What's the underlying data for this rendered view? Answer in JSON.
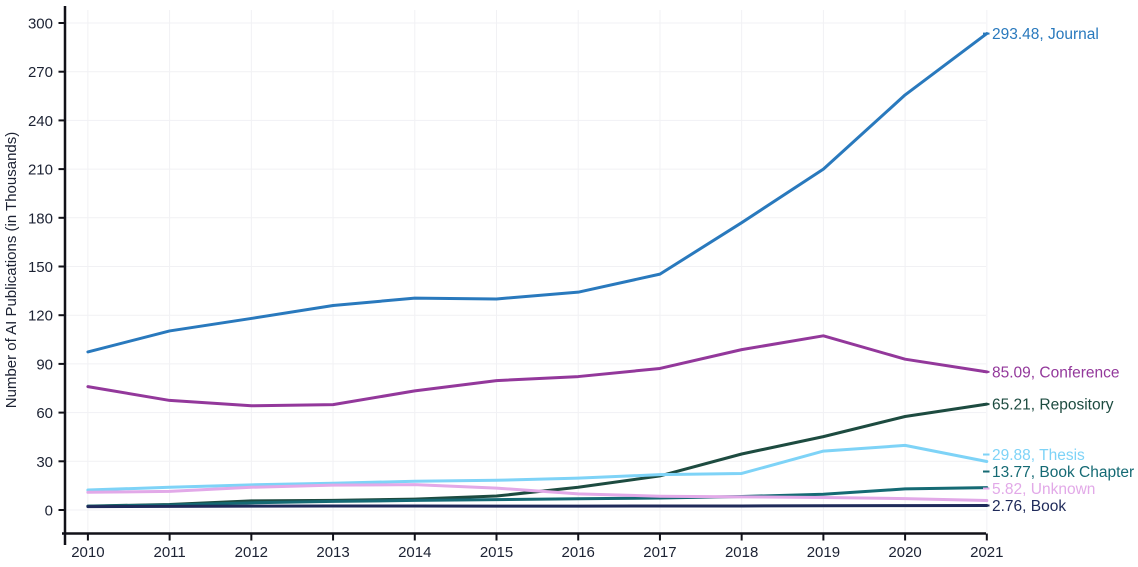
{
  "chart_data": {
    "type": "line",
    "title": "",
    "xlabel": "",
    "ylabel": "Number of AI Publications (in Thousands)",
    "x": [
      2010,
      2011,
      2012,
      2013,
      2014,
      2015,
      2016,
      2017,
      2018,
      2019,
      2020,
      2021
    ],
    "ylim": [
      0,
      300
    ],
    "ytick_step": 30,
    "grid": true,
    "legend_position": "right-end-labels",
    "series": [
      {
        "name": "Journal",
        "color": "#2979bd",
        "end_label": "293.48, Journal",
        "values": [
          97.4,
          110.3,
          118.0,
          126.0,
          130.5,
          130.0,
          134.2,
          145.3,
          177.0,
          210.0,
          255.7,
          293.48
        ]
      },
      {
        "name": "Conference",
        "color": "#93389b",
        "end_label": "85.09, Conference",
        "values": [
          76.0,
          67.5,
          64.2,
          64.9,
          73.4,
          79.7,
          82.2,
          87.2,
          98.8,
          107.3,
          92.9,
          85.09
        ]
      },
      {
        "name": "Repository",
        "color": "#1d4b40",
        "end_label": "65.21, Repository",
        "values": [
          2.4,
          3.4,
          5.6,
          5.9,
          6.7,
          8.6,
          14.0,
          21.0,
          34.5,
          45.2,
          57.6,
          65.21
        ]
      },
      {
        "name": "Thesis",
        "color": "#7ed3f7",
        "end_label": "29.88, Thesis",
        "values": [
          12.3,
          14.0,
          15.5,
          16.5,
          17.7,
          18.3,
          19.6,
          21.8,
          22.5,
          36.3,
          39.8,
          29.88
        ]
      },
      {
        "name": "Book Chapter",
        "color": "#156a74",
        "end_label": "13.77, Book Chapter",
        "values": [
          2.3,
          3.1,
          4.4,
          5.3,
          5.9,
          6.4,
          6.9,
          7.4,
          8.3,
          9.7,
          13.0,
          13.77
        ]
      },
      {
        "name": "Unknown",
        "color": "#e2a9e8",
        "end_label": "5.82, Unknown",
        "values": [
          10.9,
          11.5,
          14.0,
          15.3,
          15.6,
          13.5,
          9.9,
          8.5,
          8.1,
          7.7,
          7.0,
          5.82
        ]
      },
      {
        "name": "Book",
        "color": "#1f2a5a",
        "end_label": "2.76, Book",
        "values": [
          2.1,
          2.2,
          2.4,
          2.5,
          2.5,
          2.4,
          2.4,
          2.5,
          2.5,
          2.6,
          2.7,
          2.76
        ]
      }
    ]
  },
  "axes": {
    "y_tick_values": [
      0,
      30,
      60,
      90,
      120,
      150,
      180,
      210,
      240,
      270,
      300
    ],
    "y_tick_labels": [
      "0",
      "30",
      "60",
      "90",
      "120",
      "150",
      "180",
      "210",
      "240",
      "270",
      "300"
    ],
    "x_tick_labels": [
      "2010",
      "2011",
      "2012",
      "2013",
      "2014",
      "2015",
      "2016",
      "2017",
      "2018",
      "2019",
      "2020",
      "2021"
    ]
  },
  "colors": {
    "axis_line": "#111118",
    "axis_text": "#1c2233",
    "grid_line": "#f1f1f4",
    "background": "#ffffff"
  }
}
